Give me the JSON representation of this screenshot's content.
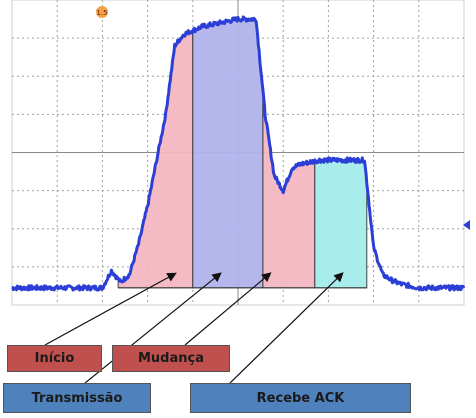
{
  "chart_data": {
    "type": "line",
    "title": "",
    "xlabel": "",
    "ylabel": "",
    "grid": true,
    "x_divisions": 10,
    "y_divisions": 8,
    "marker_text": "1.5",
    "series": [
      {
        "color": "#2b3fd6",
        "x": [
          0.0,
          0.5,
          1.0,
          1.5,
          2.0,
          2.2,
          2.4,
          2.6,
          2.8,
          3.0,
          3.2,
          3.4,
          3.6,
          3.8,
          4.0,
          4.2,
          4.4,
          4.6,
          4.8,
          5.0,
          5.2,
          5.4,
          5.6,
          5.8,
          6.0,
          6.2,
          6.4,
          6.6,
          6.8,
          7.0,
          7.2,
          7.4,
          7.6,
          7.8,
          8.0,
          8.2,
          8.4,
          8.6,
          8.8,
          9.0,
          9.5,
          10.0
        ],
        "y": [
          0.45,
          0.45,
          0.45,
          0.45,
          0.45,
          0.9,
          0.6,
          0.8,
          1.6,
          2.6,
          3.8,
          5.0,
          6.8,
          7.1,
          7.2,
          7.3,
          7.35,
          7.4,
          7.45,
          7.5,
          7.5,
          7.5,
          5.0,
          3.4,
          3.0,
          3.6,
          3.7,
          3.75,
          3.8,
          3.8,
          3.8,
          3.8,
          3.8,
          3.8,
          1.5,
          0.8,
          0.65,
          0.55,
          0.5,
          0.45,
          0.45,
          0.45
        ]
      }
    ],
    "regions": [
      {
        "name": "Início",
        "x0": 2.35,
        "x1": 4.0,
        "color": "#f4b8c1"
      },
      {
        "name": "Transmissão",
        "x0": 4.0,
        "x1": 5.55,
        "color": "#b0b3ec"
      },
      {
        "name": "Mudança",
        "x0": 5.55,
        "x1": 6.7,
        "color": "#f4b8c1"
      },
      {
        "name": "Recebe ACK",
        "x0": 6.7,
        "x1": 7.85,
        "color": "#a4ecec"
      }
    ],
    "annotations": [
      {
        "text": "Início",
        "style": "red",
        "target_x": 3.6
      },
      {
        "text": "Mudança",
        "style": "red",
        "target_x": 5.7
      },
      {
        "text": "Transmissão",
        "style": "blue",
        "target_x": 4.6
      },
      {
        "text": "Recebe ACK",
        "style": "blue",
        "target_x": 7.3
      }
    ]
  }
}
